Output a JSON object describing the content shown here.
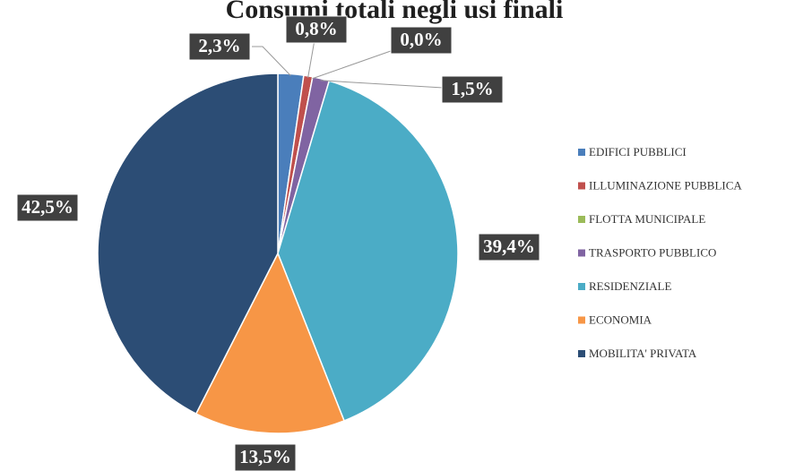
{
  "chart_data": {
    "type": "pie",
    "title": "Consumi totali negli usi finali",
    "categories": [
      "EDIFICI PUBBLICI",
      "ILLUMINAZIONE PUBBLICA",
      "FLOTTA MUNICIPALE",
      "TRASPORTO PUBBLICO",
      "RESIDENZIALE",
      "ECONOMIA",
      "MOBILITA' PRIVATA"
    ],
    "values": [
      2.3,
      0.8,
      0.0,
      1.5,
      39.4,
      13.5,
      42.5
    ],
    "value_labels": [
      "2,3%",
      "0,8%",
      "0,0%",
      "1,5%",
      "39,4%",
      "13,5%",
      "42,5%"
    ],
    "colors": [
      "#4a7ebb",
      "#c0504d",
      "#9bbb59",
      "#8064a2",
      "#4bacc6",
      "#f79646",
      "#2c4d75"
    ],
    "legend": "right"
  }
}
